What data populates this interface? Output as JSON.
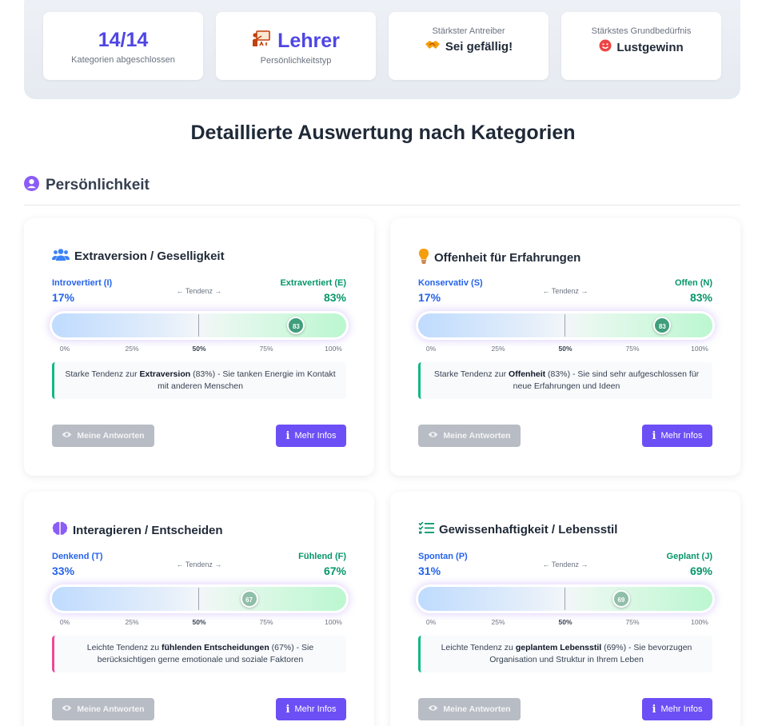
{
  "summary": {
    "categories": {
      "value": "14/14",
      "label": "Kategorien abgeschlossen"
    },
    "type": {
      "value": "Lehrer",
      "label": "Persönlichkeitstyp",
      "icon": "teacher-icon"
    },
    "driver": {
      "caption": "Stärkster Antreiber",
      "value": "Sei gefällig!",
      "icon": "handshake-icon"
    },
    "need": {
      "caption": "Stärkstes Grundbedürfnis",
      "value": "Lustgewinn",
      "icon": "smiley-icon"
    }
  },
  "section_title": "Detaillierte Auswertung nach Kategorien",
  "category": {
    "title": "Persönlichkeit",
    "icon": "user-circle-icon"
  },
  "tendency_label": "← Tendenz →",
  "ticks": [
    "0%",
    "25%",
    "50%",
    "75%",
    "100%"
  ],
  "buttons": {
    "answers": "Meine Antworten",
    "info": "Mehr Infos"
  },
  "cards": [
    {
      "title": "Extraversion / Geselligkeit",
      "icon": "users-icon",
      "left_label": "Introvertiert (I)",
      "left_pct": "17%",
      "right_label": "Extravertiert (E)",
      "right_pct": "83%",
      "marker": "83",
      "marker_value": 83,
      "desc_pre": "Starke Tendenz zur ",
      "desc_bold": "Extraversion",
      "desc_post": " (83%) - Sie tanken Energie im Kontakt mit anderen Menschen"
    },
    {
      "title": "Offenheit für Erfahrungen",
      "icon": "lightbulb-icon",
      "left_label": "Konservativ (S)",
      "left_pct": "17%",
      "right_label": "Offen (N)",
      "right_pct": "83%",
      "marker": "83",
      "marker_value": 83,
      "desc_pre": "Starke Tendenz zur ",
      "desc_bold": "Offenheit",
      "desc_post": " (83%) - Sie sind sehr aufgeschlossen für neue Erfahrungen und Ideen"
    },
    {
      "title": "Interagieren / Entscheiden",
      "icon": "brain-icon",
      "left_label": "Denkend (T)",
      "left_pct": "33%",
      "right_label": "Fühlend (F)",
      "right_pct": "67%",
      "marker": "67",
      "marker_value": 67,
      "desc_pre": "Leichte Tendenz zu ",
      "desc_bold": "fühlenden Entscheidungen",
      "desc_post": " (67%) - Sie berücksichtigen gerne emotionale und soziale Faktoren"
    },
    {
      "title": "Gewissenhaftigkeit / Lebensstil",
      "icon": "checklist-icon",
      "left_label": "Spontan (P)",
      "left_pct": "31%",
      "right_label": "Geplant (J)",
      "right_pct": "69%",
      "marker": "69",
      "marker_value": 69,
      "desc_pre": "Leichte Tendenz zu ",
      "desc_bold": "geplantem Lebensstil",
      "desc_post": " (69%) - Sie bevorzugen Organisation und Struktur in Ihrem Leben"
    }
  ]
}
